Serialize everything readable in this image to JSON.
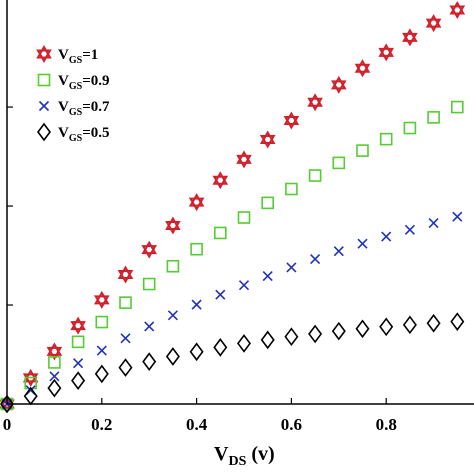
{
  "chart_data": {
    "type": "scatter",
    "x_ticks": [
      "0",
      "0.2",
      "0.4",
      "0.6",
      "0.8"
    ],
    "y_ticks": [],
    "xlabel": {
      "main": "V",
      "sub": "DS",
      "unit": " (v)"
    },
    "xlim": [
      0,
      0.95
    ],
    "ylim": [
      0,
      1.0
    ],
    "legend_position": "top-left",
    "series": [
      {
        "name": "V_GS=1",
        "legend": {
          "main": "V",
          "sub": "GS",
          "value": "=1"
        },
        "marker": "hexagram",
        "color": "#d0202a",
        "x": [
          0,
          0.05,
          0.1,
          0.15,
          0.2,
          0.25,
          0.3,
          0.35,
          0.4,
          0.45,
          0.5,
          0.55,
          0.6,
          0.65,
          0.7,
          0.75,
          0.8,
          0.85,
          0.9,
          0.95
        ],
        "y": [
          0,
          0.066,
          0.133,
          0.198,
          0.263,
          0.327,
          0.39,
          0.451,
          0.51,
          0.565,
          0.618,
          0.668,
          0.716,
          0.762,
          0.806,
          0.848,
          0.888,
          0.926,
          0.962,
          0.995
        ]
      },
      {
        "name": "V_GS=0.9",
        "legend": {
          "main": "V",
          "sub": "GS",
          "value": "=0.9"
        },
        "marker": "square",
        "color": "#55cc33",
        "x": [
          0,
          0.05,
          0.1,
          0.15,
          0.2,
          0.25,
          0.3,
          0.35,
          0.4,
          0.45,
          0.5,
          0.55,
          0.6,
          0.65,
          0.7,
          0.75,
          0.8,
          0.85,
          0.9,
          0.95
        ],
        "y": [
          0,
          0.053,
          0.105,
          0.157,
          0.207,
          0.256,
          0.303,
          0.348,
          0.391,
          0.432,
          0.471,
          0.508,
          0.543,
          0.577,
          0.609,
          0.64,
          0.669,
          0.697,
          0.724,
          0.75
        ]
      },
      {
        "name": "V_GS=0.7",
        "legend": {
          "main": "V",
          "sub": "GS",
          "value": "=0.7"
        },
        "marker": "x",
        "color": "#2233bb",
        "x": [
          0,
          0.05,
          0.1,
          0.15,
          0.2,
          0.25,
          0.3,
          0.35,
          0.4,
          0.45,
          0.5,
          0.55,
          0.6,
          0.65,
          0.7,
          0.75,
          0.8,
          0.85,
          0.9,
          0.95
        ],
        "y": [
          0,
          0.035,
          0.07,
          0.103,
          0.135,
          0.166,
          0.196,
          0.224,
          0.251,
          0.276,
          0.3,
          0.323,
          0.345,
          0.366,
          0.386,
          0.405,
          0.423,
          0.44,
          0.457,
          0.473
        ]
      },
      {
        "name": "V_GS=0.5",
        "legend": {
          "main": "V",
          "sub": "GS",
          "value": "=0.5"
        },
        "marker": "diamond",
        "color": "#000000",
        "x": [
          0,
          0.05,
          0.1,
          0.15,
          0.2,
          0.25,
          0.3,
          0.35,
          0.4,
          0.45,
          0.5,
          0.55,
          0.6,
          0.65,
          0.7,
          0.75,
          0.8,
          0.85,
          0.9,
          0.95
        ],
        "y": [
          0,
          0.02,
          0.04,
          0.059,
          0.076,
          0.092,
          0.107,
          0.12,
          0.132,
          0.143,
          0.153,
          0.162,
          0.17,
          0.177,
          0.184,
          0.19,
          0.195,
          0.2,
          0.204,
          0.208
        ]
      }
    ]
  }
}
